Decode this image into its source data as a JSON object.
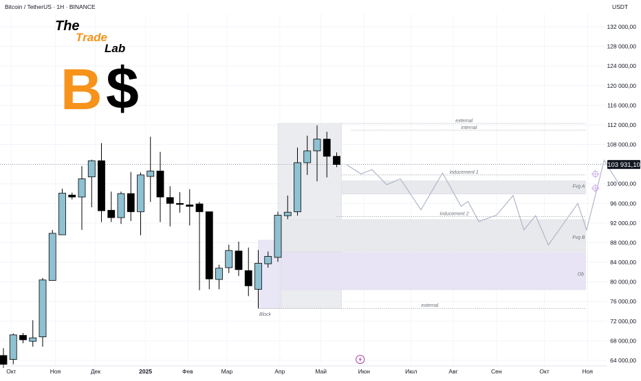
{
  "header": {
    "symbol": "Bitcoin / TetherUS · 1H · BINANCE",
    "currency": "USDT"
  },
  "logo": {
    "word1": "The",
    "word2": "Trade",
    "word3": "Lab",
    "glyph1": "B",
    "glyph2": "$",
    "colors": {
      "orange": "#f7931a",
      "black": "#000000"
    }
  },
  "chart_data": {
    "type": "candlestick",
    "y_axis": {
      "min": 63000,
      "max": 135000,
      "ticks": [
        132000,
        128000,
        124000,
        120000,
        116000,
        112000,
        108000,
        104000,
        100000,
        96000,
        92000,
        88000,
        84000,
        80000,
        76000,
        72000,
        68000,
        64000
      ],
      "tick_labels": [
        "132 000,00",
        "128 000,00",
        "124 000,00",
        "120 000,00",
        "116 000,00",
        "112 000,00",
        "108 000,00",
        "104 000,00",
        "100 000,00",
        "96 000,00",
        "92 000,00",
        "88 000,00",
        "84 000,00",
        "80 000,00",
        "76 000,00",
        "72 000,00",
        "68 000,00",
        "64 000,00"
      ]
    },
    "x_axis": {
      "labels": [
        {
          "text": "Окт",
          "bar": 0.8
        },
        {
          "text": "Ноя",
          "bar": 5.3
        },
        {
          "text": "Дек",
          "bar": 9.4
        },
        {
          "text": "2025",
          "bar": 14.5
        },
        {
          "text": "Фев",
          "bar": 18.8
        },
        {
          "text": "Мар",
          "bar": 22.8
        },
        {
          "text": "Апр",
          "bar": 28.2
        },
        {
          "text": "Май",
          "bar": 32.4
        },
        {
          "text": "Июн",
          "bar": 36.8
        },
        {
          "text": "Июл",
          "bar": 41.6
        },
        {
          "text": "Авг",
          "bar": 45.9
        },
        {
          "text": "Сен",
          "bar": 50.3
        },
        {
          "text": "Окт",
          "bar": 55.2
        },
        {
          "text": "Ноя",
          "bar": 59.6
        }
      ]
    },
    "last_price": {
      "value": 103931.1,
      "label": "103 931,10",
      "color": "#131722"
    },
    "colors": {
      "up": "#8ec1d1",
      "down": "#000000",
      "projection": "#b2b5c9",
      "zone_grey": "#e8e9ec",
      "zone_purple": "#e7e3f4",
      "dotted": "#9aa0a6"
    },
    "candles": [
      {
        "o": 65000,
        "h": 66500,
        "l": 62500,
        "c": 63200
      },
      {
        "o": 64200,
        "h": 69500,
        "l": 63200,
        "c": 69200
      },
      {
        "o": 69100,
        "h": 69600,
        "l": 67500,
        "c": 68200
      },
      {
        "o": 67900,
        "h": 72200,
        "l": 66800,
        "c": 68600
      },
      {
        "o": 68800,
        "h": 80800,
        "l": 66800,
        "c": 80400
      },
      {
        "o": 80300,
        "h": 90600,
        "l": 80300,
        "c": 89900
      },
      {
        "o": 89600,
        "h": 99000,
        "l": 89600,
        "c": 98100
      },
      {
        "o": 97700,
        "h": 98200,
        "l": 96800,
        "c": 97300
      },
      {
        "o": 97300,
        "h": 103600,
        "l": 90600,
        "c": 101000
      },
      {
        "o": 101400,
        "h": 104900,
        "l": 95200,
        "c": 104700
      },
      {
        "o": 104700,
        "h": 108300,
        "l": 92200,
        "c": 94500
      },
      {
        "o": 94600,
        "h": 98400,
        "l": 92200,
        "c": 93100
      },
      {
        "o": 93100,
        "h": 98400,
        "l": 91800,
        "c": 98000
      },
      {
        "o": 98000,
        "h": 102400,
        "l": 92400,
        "c": 94300
      },
      {
        "o": 94300,
        "h": 102300,
        "l": 89500,
        "c": 101800
      },
      {
        "o": 101500,
        "h": 109600,
        "l": 96300,
        "c": 102600
      },
      {
        "o": 102600,
        "h": 106500,
        "l": 92200,
        "c": 97300
      },
      {
        "o": 97200,
        "h": 99500,
        "l": 91300,
        "c": 96000
      },
      {
        "o": 96000,
        "h": 98300,
        "l": 94100,
        "c": 95800
      },
      {
        "o": 95700,
        "h": 98900,
        "l": 91500,
        "c": 95400
      },
      {
        "o": 95900,
        "h": 96300,
        "l": 78300,
        "c": 94300
      },
      {
        "o": 94300,
        "h": 94300,
        "l": 78500,
        "c": 80600
      },
      {
        "o": 80500,
        "h": 83500,
        "l": 78500,
        "c": 82800
      },
      {
        "o": 82900,
        "h": 87600,
        "l": 81800,
        "c": 86400
      },
      {
        "o": 86300,
        "h": 88200,
        "l": 81200,
        "c": 82500
      },
      {
        "o": 82300,
        "h": 87000,
        "l": 77100,
        "c": 79200
      },
      {
        "o": 78500,
        "h": 86500,
        "l": 74600,
        "c": 83800
      },
      {
        "o": 83700,
        "h": 86200,
        "l": 82900,
        "c": 85200
      },
      {
        "o": 85000,
        "h": 94300,
        "l": 84100,
        "c": 93600
      },
      {
        "o": 93500,
        "h": 97600,
        "l": 92800,
        "c": 94200
      },
      {
        "o": 94300,
        "h": 107400,
        "l": 93500,
        "c": 104300
      },
      {
        "o": 104300,
        "h": 109800,
        "l": 101800,
        "c": 106700
      },
      {
        "o": 106700,
        "h": 111900,
        "l": 100500,
        "c": 109100
      },
      {
        "o": 109100,
        "h": 110600,
        "l": 101300,
        "c": 105600
      },
      {
        "o": 105600,
        "h": 106400,
        "l": 103400,
        "c": 103931
      }
    ],
    "projection": [
      [
        35,
        103900
      ],
      [
        36.5,
        102000
      ],
      [
        37.6,
        102900
      ],
      [
        39.1,
        99800
      ],
      [
        40.5,
        101000
      ],
      [
        42.6,
        94700
      ],
      [
        44.8,
        102200
      ],
      [
        46.7,
        95400
      ],
      [
        47.4,
        96400
      ],
      [
        48.5,
        92300
      ],
      [
        50.3,
        93600
      ],
      [
        52.0,
        97600
      ],
      [
        53.1,
        90600
      ],
      [
        54.3,
        93500
      ],
      [
        55.6,
        87500
      ],
      [
        58.6,
        96000
      ],
      [
        59.5,
        90600
      ],
      [
        61.3,
        104800
      ],
      [
        62.9,
        99600
      ]
    ],
    "zones": [
      {
        "name": "premium-zone",
        "x0": 28.0,
        "x1": 34.5,
        "y0": 112300,
        "y1": 74600,
        "fill": "zone_grey",
        "opacity": 0.85
      },
      {
        "name": "block-zone",
        "x0": 26.0,
        "x1": 28.3,
        "y0": 88500,
        "y1": 74600,
        "fill": "zone_purple",
        "opacity": 0.9
      },
      {
        "name": "fvg-a-zone",
        "x0": 34.5,
        "x1": 59.4,
        "y0": 100600,
        "y1": 97900,
        "fill": "zone_grey",
        "opacity": 1.0
      },
      {
        "name": "fvg-b-zone",
        "x0": 28.3,
        "x1": 59.4,
        "y0": 92700,
        "y1": 86200,
        "fill": "zone_grey",
        "opacity": 1.0
      },
      {
        "name": "ob-zone",
        "x0": 28.3,
        "x1": 59.4,
        "y0": 86000,
        "y1": 78400,
        "fill": "zone_purple",
        "opacity": 0.95
      }
    ],
    "levels": [
      {
        "name": "external-top",
        "price": 112300,
        "x0": 34.5,
        "x1": 59.4,
        "label": "external",
        "label_x": 47.0
      },
      {
        "name": "internal",
        "price": 110900,
        "x0": 35.5,
        "x1": 59.4,
        "label": "internal",
        "label_x": 47.5
      },
      {
        "name": "inducement-1",
        "price": 101800,
        "x0": 34.5,
        "x1": 59.4,
        "label": "inducement 1",
        "label_x": 47.0
      },
      {
        "name": "inducement-2",
        "price": 93300,
        "x0": 34.0,
        "x1": 59.4,
        "label": "inducement 2",
        "label_x": 46.0
      },
      {
        "name": "external-bottom",
        "price": 74600,
        "x0": 26.0,
        "x1": 59.4,
        "label": "external",
        "label_x": 43.5
      }
    ],
    "zone_labels": [
      {
        "text": "Fvg A",
        "x": 58.7,
        "price": 99200
      },
      {
        "text": "Fvg B",
        "x": 58.7,
        "price": 88800
      },
      {
        "text": "Ob",
        "x": 58.9,
        "price": 81300
      },
      {
        "text": "Block",
        "x": 26.7,
        "price": 73100
      }
    ],
    "markers": [
      {
        "name": "target-marker-upper",
        "x": 60.4,
        "price": 102000,
        "color": "#c9a7e4"
      },
      {
        "name": "target-marker-lower",
        "x": 60.4,
        "price": 99100,
        "color": "#c9a7e4"
      }
    ],
    "event_icon": {
      "x": 36.4,
      "price": 64200,
      "color": "#b553ae"
    }
  }
}
